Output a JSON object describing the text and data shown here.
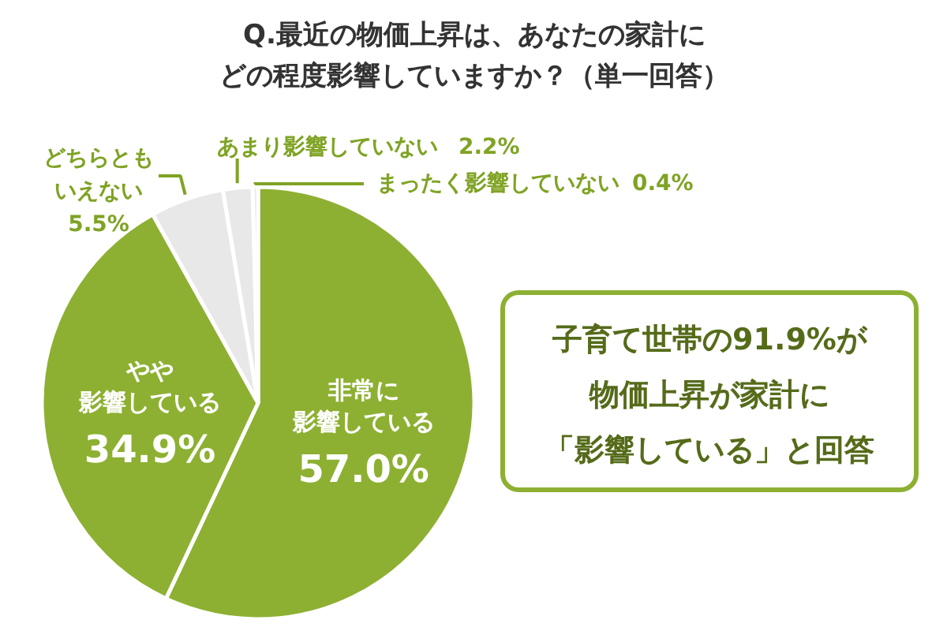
{
  "chart_data": {
    "type": "pie",
    "title": "Q.最近の物価上昇は、あなたの家計にどの程度影響していますか？（単一回答）",
    "categories": [
      "非常に影響している",
      "やや影響している",
      "どちらともいえない",
      "あまり影響していない",
      "まったく影響していない"
    ],
    "values": [
      57.0,
      34.9,
      5.5,
      2.2,
      0.4
    ],
    "value_labels": [
      "57.0%",
      "34.9%",
      "5.5%",
      "2.2%",
      "0.4%"
    ],
    "colors": [
      "#8db032",
      "#8db032",
      "#e8e8e8",
      "#e8e8e8",
      "#e8e8e8"
    ],
    "annotations": [
      "子育て世帯の91.9%が物価上昇が家計に「影響している」と回答"
    ]
  }
}
